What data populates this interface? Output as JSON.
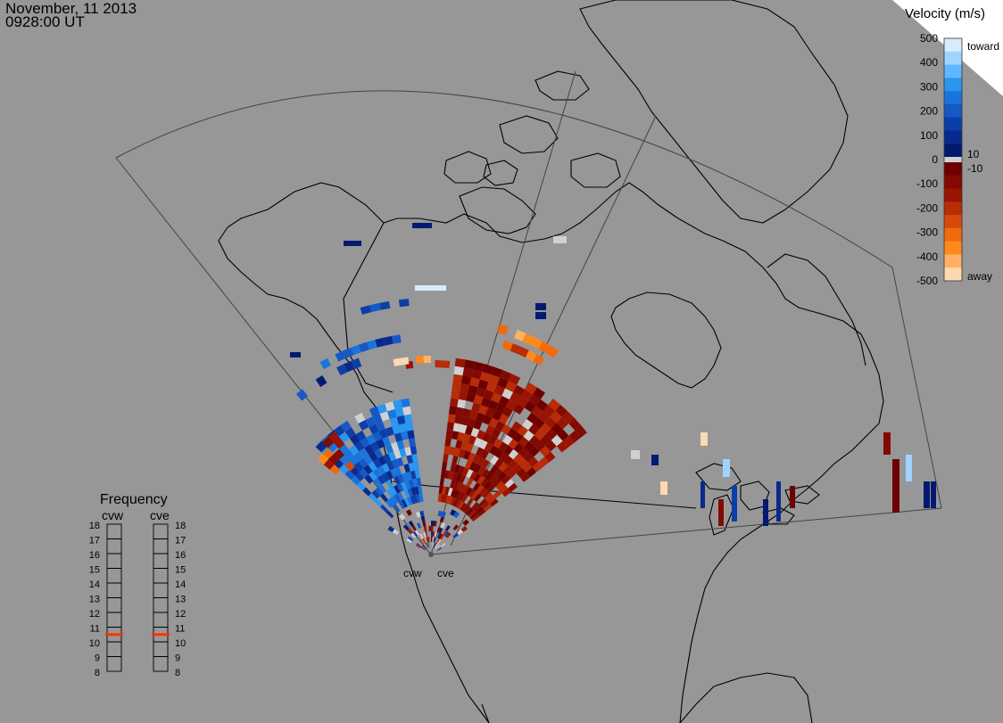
{
  "header": {
    "date": "November, 11 2013",
    "time": "0928:00 UT"
  },
  "colorbar": {
    "title": "Velocity (m/s)",
    "ticks": [
      "500",
      "400",
      "300",
      "200",
      "100",
      "0",
      "-100",
      "-200",
      "-300",
      "-400",
      "-500"
    ],
    "label_toward": "toward",
    "label_away": "away",
    "label_pos_threshold": "10",
    "label_neg_threshold": "-10",
    "colors_toward": [
      "#d6ecff",
      "#9fd4ff",
      "#5fb8ff",
      "#2a96f0",
      "#1a74dd",
      "#1658c4",
      "#0c3ea8",
      "#082a8c",
      "#031a70"
    ],
    "colors_away": [
      "#fcd9b0",
      "#ffb066",
      "#ff8a1c",
      "#f06a10",
      "#d84a0c",
      "#b82c08",
      "#9a1404",
      "#820a02",
      "#6e0000"
    ],
    "color_gray": "#d0d0d0"
  },
  "frequency": {
    "title": "Frequency",
    "radars": [
      {
        "name": "cvw",
        "value_mhz": 10.5
      },
      {
        "name": "cve",
        "value_mhz": 10.5
      }
    ],
    "levels": [
      "18",
      "17",
      "16",
      "15",
      "14",
      "13",
      "12",
      "11",
      "10",
      "9",
      "8"
    ],
    "marker_color": "#ff3300"
  },
  "radars": {
    "west": "cvw",
    "east": "cve"
  },
  "map": {
    "background_color": "#979797",
    "coastline_color": "#000000"
  }
}
